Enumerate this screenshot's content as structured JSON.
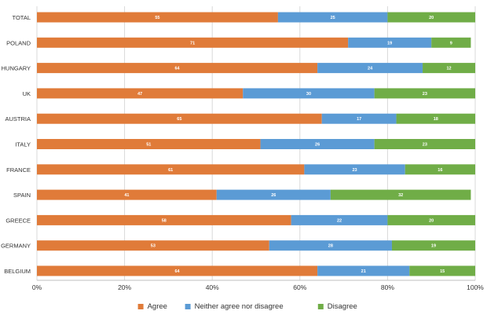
{
  "chart_data": {
    "type": "bar",
    "orientation": "horizontal",
    "stacked": true,
    "categories": [
      "TOTAL",
      "POLAND",
      "HUNGARY",
      "UK",
      "AUSTRIA",
      "ITALY",
      "FRANCE",
      "SPAIN",
      "GREECE",
      "GERMANY",
      "BELGIUM"
    ],
    "series": [
      {
        "name": "Agree",
        "color": "#E07B39",
        "values": [
          55,
          71,
          64,
          47,
          65,
          51,
          61,
          41,
          58,
          53,
          64
        ]
      },
      {
        "name": "Neither agree nor disagree",
        "color": "#5B9BD5",
        "values": [
          25,
          19,
          24,
          30,
          17,
          26,
          23,
          26,
          22,
          28,
          21
        ]
      },
      {
        "name": "Disagree",
        "color": "#70AD47",
        "values": [
          20,
          9,
          12,
          23,
          18,
          23,
          16,
          32,
          20,
          19,
          15
        ]
      }
    ],
    "xlim": [
      0,
      100
    ],
    "xticks": [
      "0%",
      "20%",
      "40%",
      "60%",
      "80%",
      "100%"
    ],
    "grid": true,
    "legend_position": "bottom"
  }
}
